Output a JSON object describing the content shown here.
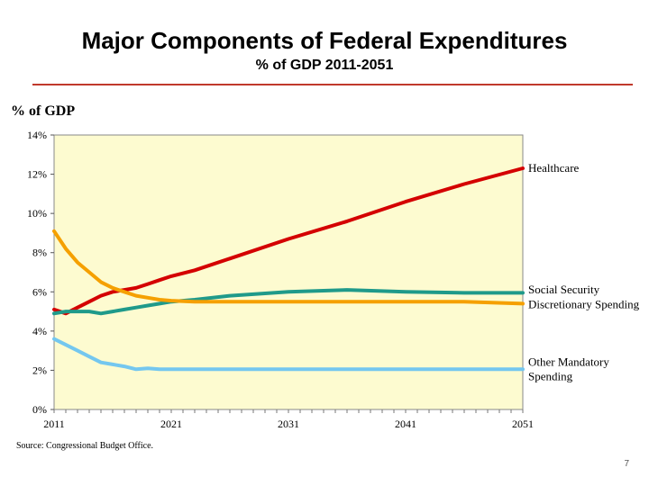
{
  "page": {
    "title": "Major Components of Federal Expenditures",
    "subtitle": "% of GDP  2011-2051",
    "source": "Source: Congressional Budget Office.",
    "page_number": "7"
  },
  "colors": {
    "plot_bg": "#fdfbd0",
    "rule": "#c0392b",
    "healthcare": "#d40000",
    "social_security": "#1f9a8a",
    "discretionary": "#f5a000",
    "other_mandatory": "#74c7ef"
  },
  "chart_data": {
    "type": "line",
    "title": "Major Components of Federal Expenditures",
    "subtitle": "% of GDP  2011-2051",
    "xlabel": "",
    "ylabel": "% of GDP",
    "xlim": [
      2011,
      2051
    ],
    "ylim": [
      0,
      14
    ],
    "x_ticks": [
      "2011",
      "2021",
      "2031",
      "2041",
      "2051"
    ],
    "y_ticks": [
      "0%",
      "2%",
      "4%",
      "6%",
      "8%",
      "10%",
      "12%",
      "14%"
    ],
    "grid": false,
    "x": [
      2011,
      2012,
      2013,
      2014,
      2015,
      2016,
      2017,
      2018,
      2019,
      2020,
      2021,
      2023,
      2026,
      2031,
      2036,
      2041,
      2046,
      2051
    ],
    "series": [
      {
        "name": "Healthcare",
        "color_key": "healthcare",
        "values": [
          5.1,
          4.9,
          5.2,
          5.5,
          5.8,
          6.0,
          6.1,
          6.2,
          6.4,
          6.6,
          6.8,
          7.1,
          7.7,
          8.7,
          9.6,
          10.6,
          11.5,
          12.3
        ]
      },
      {
        "name": "Social Security",
        "color_key": "social_security",
        "values": [
          4.9,
          5.0,
          5.0,
          5.0,
          4.9,
          5.0,
          5.1,
          5.2,
          5.3,
          5.4,
          5.5,
          5.6,
          5.8,
          6.0,
          6.1,
          6.0,
          5.95,
          5.95
        ]
      },
      {
        "name": "Discretionary Spending",
        "color_key": "discretionary",
        "values": [
          9.1,
          8.2,
          7.5,
          7.0,
          6.5,
          6.2,
          6.0,
          5.8,
          5.7,
          5.6,
          5.55,
          5.5,
          5.5,
          5.5,
          5.5,
          5.5,
          5.5,
          5.4
        ]
      },
      {
        "name": "Other Mandatory Spending",
        "color_key": "other_mandatory",
        "values": [
          3.6,
          3.3,
          3.0,
          2.7,
          2.4,
          2.3,
          2.2,
          2.05,
          2.1,
          2.05,
          2.05,
          2.05,
          2.05,
          2.05,
          2.05,
          2.05,
          2.05,
          2.05
        ]
      }
    ],
    "end_labels": [
      {
        "series": "Healthcare",
        "lines": [
          "Healthcare"
        ],
        "y": 12.3
      },
      {
        "series": "Social Security",
        "lines": [
          "Social Security"
        ],
        "y": 6.1
      },
      {
        "series": "Discretionary Spending",
        "lines": [
          "Discretionary Spending"
        ],
        "y": 5.35
      },
      {
        "series": "Other Mandatory Spending",
        "lines": [
          "Other Mandatory",
          "Spending"
        ],
        "y": 2.4
      }
    ]
  }
}
